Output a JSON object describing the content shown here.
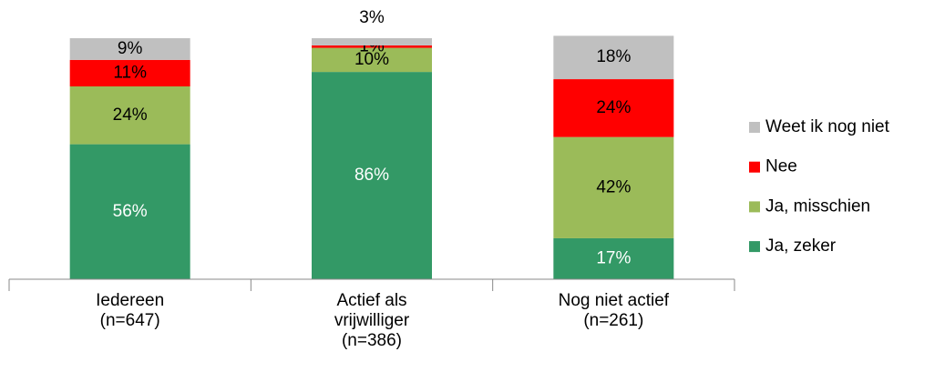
{
  "chart_data": {
    "type": "stacked_bar",
    "categories": [
      "Iedereen (n=647)",
      "Actief als vrijwilliger (n=386)",
      "Nog niet actief (n=261)"
    ],
    "series": [
      {
        "name": "Ja, zeker",
        "color": "#339966",
        "label_color": "#ffffff",
        "values": [
          56,
          86,
          17
        ],
        "value_labels": [
          "56%",
          "86%",
          "17%"
        ]
      },
      {
        "name": "Ja, misschien",
        "color": "#9bbb59",
        "label_color": "#000000",
        "values": [
          24,
          10,
          42
        ],
        "value_labels": [
          "24%",
          "10%",
          "42%"
        ]
      },
      {
        "name": "Nee",
        "color": "#ff0000",
        "label_color": "#000000",
        "values": [
          11,
          1,
          24
        ],
        "value_labels": [
          "11%",
          "1%",
          "24%"
        ]
      },
      {
        "name": "Weet ik nog niet",
        "color": "#c0c0c0",
        "label_color": "#000000",
        "values": [
          9,
          3,
          18
        ],
        "value_labels": [
          "9%",
          "3%",
          "18%"
        ]
      }
    ],
    "ylim": [
      0,
      100
    ],
    "legend": "right"
  }
}
